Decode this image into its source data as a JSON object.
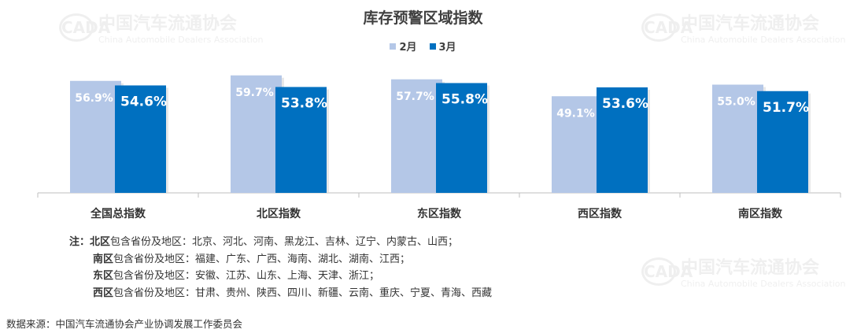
{
  "watermark": {
    "name_cn": "中国汽车流通协会",
    "name_en": "China Automobile Dealers Association",
    "logo_text": "CADA"
  },
  "chart_data": {
    "type": "bar",
    "title": "库存预警区域指数",
    "categories": [
      "全国总指数",
      "北区指数",
      "东区指数",
      "西区指数",
      "南区指数"
    ],
    "series": [
      {
        "name": "2月",
        "values": [
          56.9,
          59.7,
          57.7,
          49.1,
          55.0
        ],
        "labels": [
          "56.9%",
          "59.7%",
          "57.7%",
          "49.1%",
          "55.0%"
        ],
        "color": "#B4C7E7"
      },
      {
        "name": "3月",
        "values": [
          54.6,
          53.8,
          55.8,
          53.6,
          51.7
        ],
        "labels": [
          "54.6%",
          "53.8%",
          "55.8%",
          "53.6%",
          "51.7%"
        ],
        "color": "#0070C0"
      }
    ],
    "ylim": [
      0,
      60
    ],
    "xlabel": "",
    "ylabel": "",
    "grid": false,
    "legend": "top-center"
  },
  "notes": {
    "prefix": "注：",
    "lines": [
      {
        "region": "北区",
        "text": "包含省份及地区：北京、河北、河南、黑龙江、吉林、辽宁、内蒙古、山西；"
      },
      {
        "region": "南区",
        "text": "包含省份及地区：福建、广东、广西、海南、湖北、湖南、江西；"
      },
      {
        "region": "东区",
        "text": "包含省份及地区：安徽、江苏、山东、上海、天津、浙江；"
      },
      {
        "region": "西区",
        "text": "包含省份及地区：甘肃、贵州、陕西、四川、新疆、云南、重庆、宁夏、青海、西藏"
      }
    ]
  },
  "source": "数据来源：中国汽车流通协会产业协调发展工作委员会"
}
